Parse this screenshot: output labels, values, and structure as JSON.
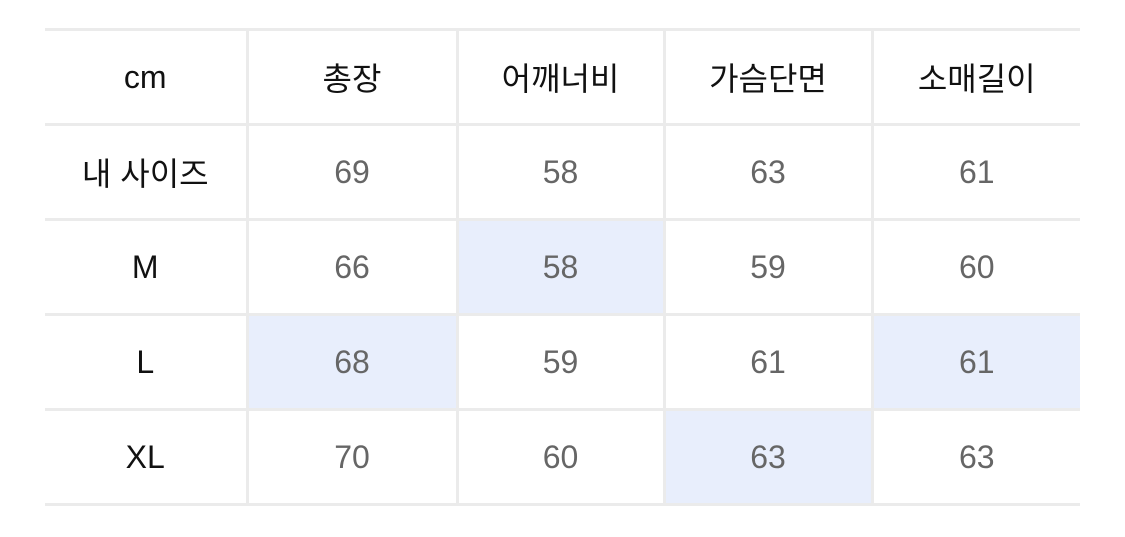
{
  "table": {
    "headers": [
      "cm",
      "총장",
      "어깨너비",
      "가슴단면",
      "소매길이"
    ],
    "rows": [
      {
        "label": "내 사이즈",
        "values": [
          "69",
          "58",
          "63",
          "61"
        ],
        "highlight": [
          false,
          false,
          false,
          false
        ]
      },
      {
        "label": "M",
        "values": [
          "66",
          "58",
          "59",
          "60"
        ],
        "highlight": [
          false,
          true,
          false,
          false
        ]
      },
      {
        "label": "L",
        "values": [
          "68",
          "59",
          "61",
          "61"
        ],
        "highlight": [
          true,
          false,
          false,
          true
        ]
      },
      {
        "label": "XL",
        "values": [
          "70",
          "60",
          "63",
          "63"
        ],
        "highlight": [
          false,
          false,
          true,
          false
        ]
      }
    ],
    "highlight_color": "#e8eefc",
    "value_color": "#666666"
  }
}
